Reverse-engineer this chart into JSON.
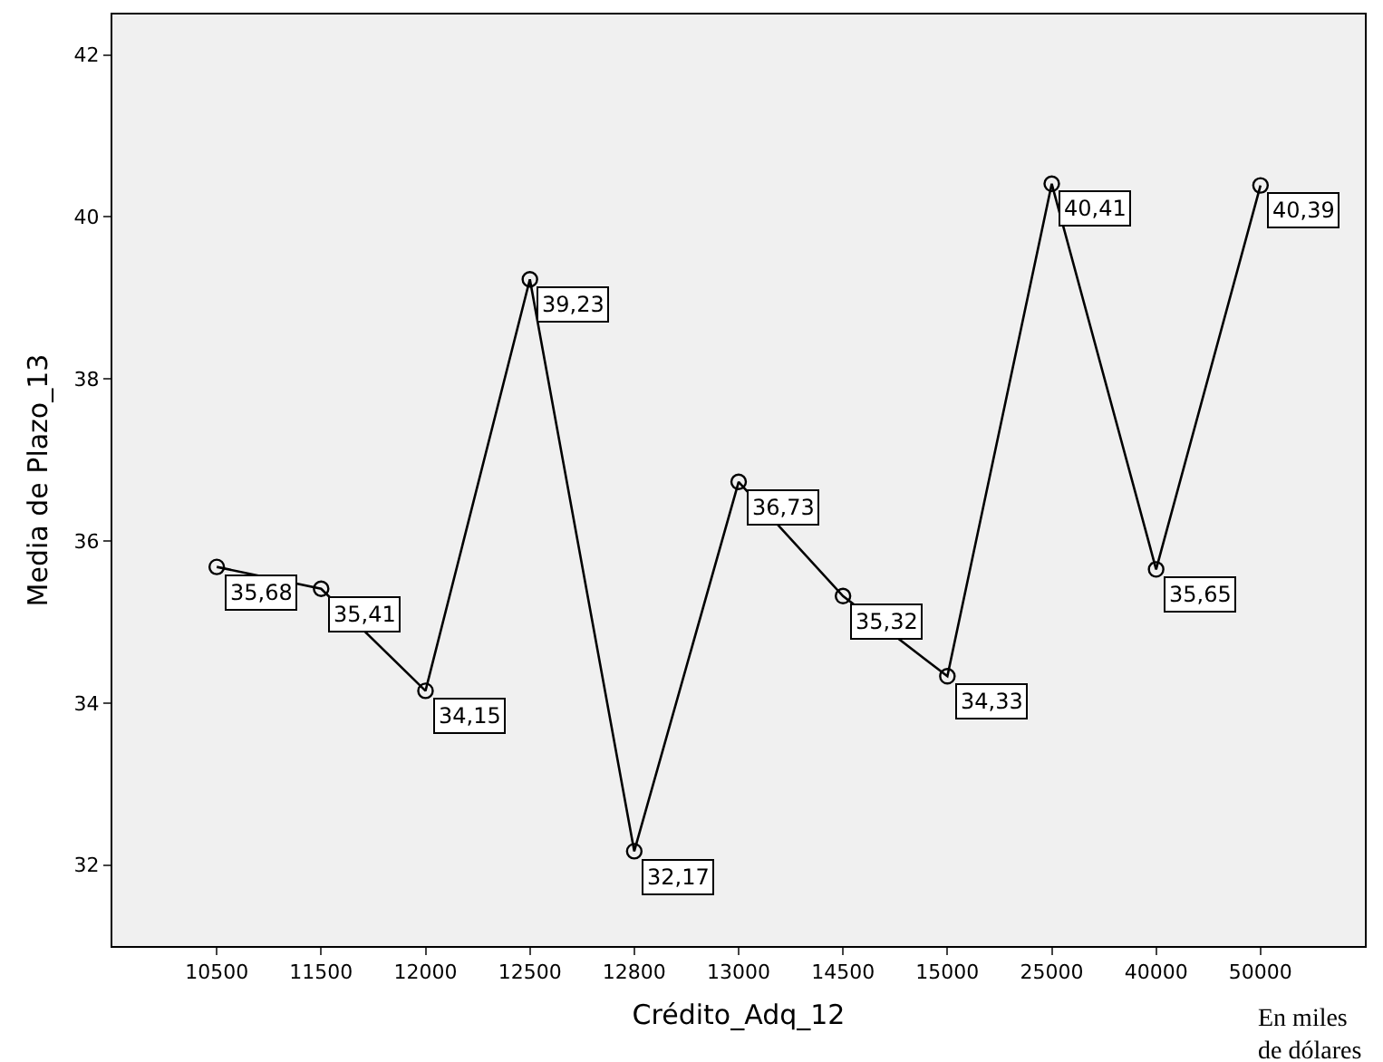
{
  "chart_data": {
    "type": "line",
    "xlabel": "Crédito_Adq_12",
    "ylabel": "Media de Plazo_13",
    "categories": [
      "10500",
      "11500",
      "12000",
      "12500",
      "12800",
      "13000",
      "14500",
      "15000",
      "25000",
      "40000",
      "50000"
    ],
    "series": [
      {
        "color": "#000000",
        "values": [
          35.68,
          35.41,
          34.15,
          39.23,
          32.17,
          36.73,
          35.32,
          34.33,
          40.41,
          35.65,
          40.39
        ],
        "value_labels": [
          "35,68",
          "35,41",
          "34,15",
          "39,23",
          "32,17",
          "36,73",
          "35,32",
          "34,33",
          "40,41",
          "35,65",
          "40,39"
        ]
      }
    ],
    "ylim": [
      31,
      42.5
    ],
    "yticks": [
      32,
      34,
      36,
      38,
      40,
      42
    ],
    "grid": false,
    "legend": false,
    "marker": "circle",
    "line_style": "solid",
    "annotations": [
      "En miles de dólares"
    ]
  }
}
